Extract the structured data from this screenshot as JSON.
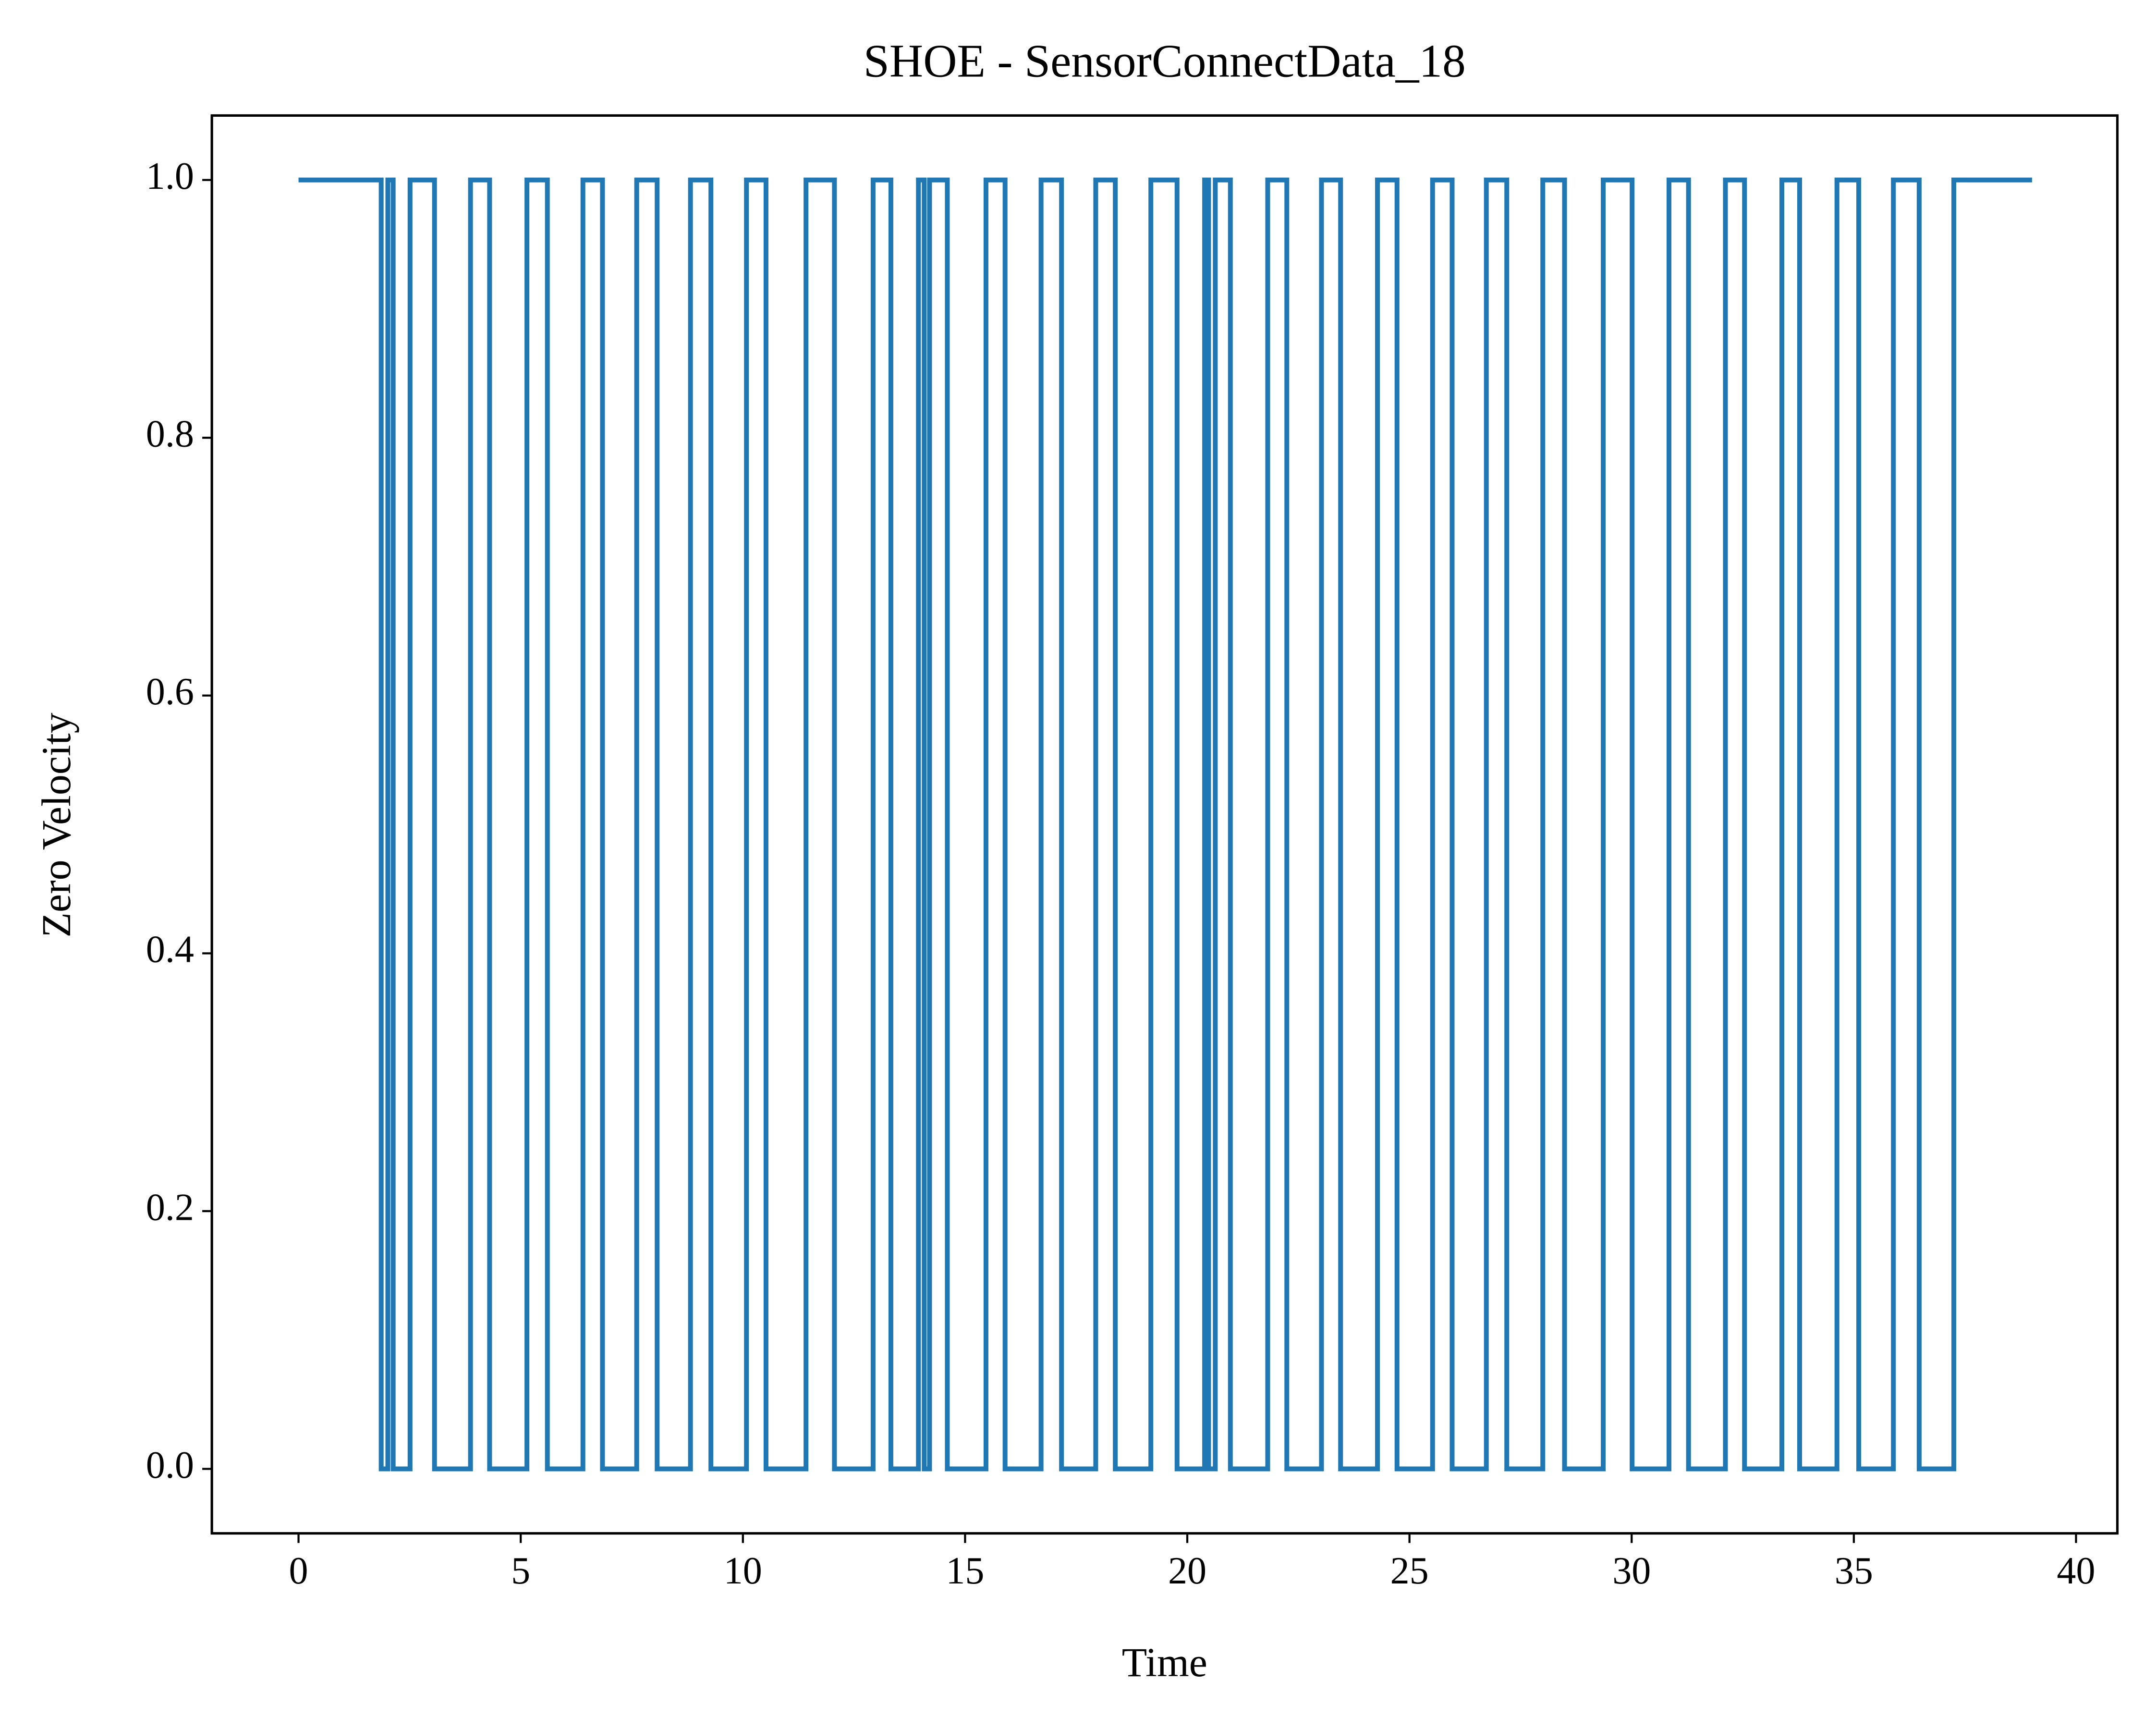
{
  "chart_data": {
    "type": "line",
    "title": "SHOE - SensorConnectData_18",
    "x_label": "Time",
    "y_label": "Zero Velocity",
    "step": "post",
    "series": [
      {
        "color": "#1f77b4",
        "x": [
          0,
          1.86,
          2.01,
          2.13,
          2.51,
          3.06,
          3.87,
          4.3,
          5.14,
          5.6,
          6.4,
          6.84,
          7.61,
          8.07,
          8.82,
          9.28,
          10.08,
          10.52,
          11.42,
          12.06,
          12.93,
          13.33,
          13.95,
          14.08,
          14.2,
          14.6,
          15.47,
          15.9,
          16.71,
          17.17,
          17.94,
          18.38,
          19.18,
          19.77,
          20.39,
          20.48,
          20.63,
          20.97,
          21.81,
          22.24,
          23.02,
          23.45,
          24.28,
          24.72,
          25.52,
          25.96,
          26.73,
          27.19,
          28.0,
          28.49,
          29.36,
          30.01,
          30.84,
          31.28,
          32.11,
          32.54,
          33.38,
          33.78,
          34.62,
          35.11,
          35.89,
          36.47,
          37.25,
          39.01
        ],
        "values": [
          1,
          0,
          1,
          0,
          1,
          0,
          1,
          0,
          1,
          0,
          1,
          0,
          1,
          0,
          1,
          0,
          1,
          0,
          1,
          0,
          1,
          0,
          1,
          0,
          1,
          0,
          1,
          0,
          1,
          0,
          1,
          0,
          1,
          0,
          1,
          0,
          1,
          0,
          1,
          0,
          1,
          0,
          1,
          0,
          1,
          0,
          1,
          0,
          1,
          0,
          1,
          0,
          1,
          0,
          1,
          0,
          1,
          0,
          1,
          0,
          1,
          0,
          1,
          1
        ]
      }
    ],
    "xlim": [
      -1.95,
      40.93
    ],
    "ylim": [
      -0.05,
      1.05
    ],
    "xticks": [
      0,
      5,
      10,
      15,
      20,
      25,
      30,
      35,
      40
    ],
    "yticks": [
      {
        "value": 0,
        "label": "0.0"
      },
      0.2,
      0.4,
      0.6,
      0.8,
      {
        "value": 1,
        "label": "1.0"
      }
    ],
    "grid": false
  }
}
